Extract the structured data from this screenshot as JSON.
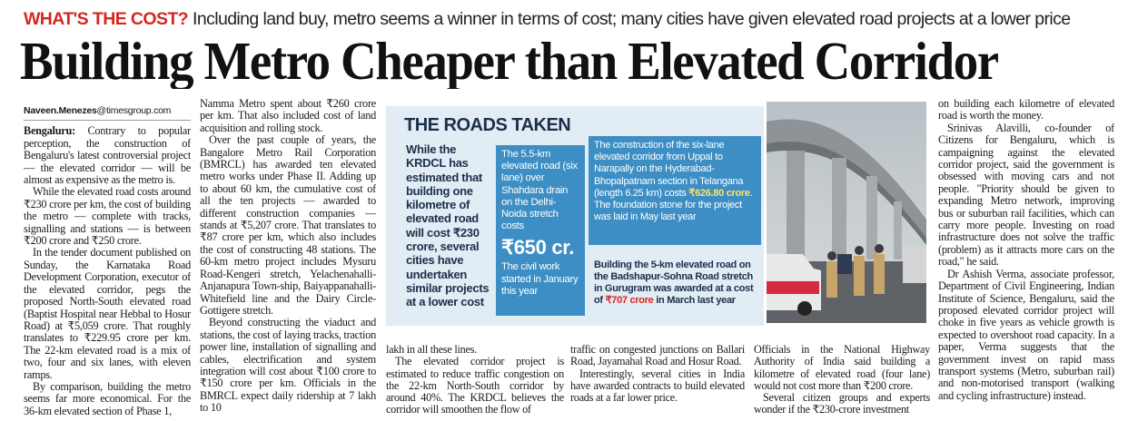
{
  "kicker": {
    "label": "WHAT'S THE COST?",
    "text": "Including land buy, metro seems a winner in terms of cost; many cities have given elevated road projects at a lower price"
  },
  "headline": "Building Metro Cheaper than Elevated Corridor",
  "byline": {
    "name": "Naveen.Menezes",
    "domain": "@timesgroup.com"
  },
  "col1": {
    "dateline": "Bengaluru:",
    "p1": "Contrary to popular perception, the construction of Bengaluru's latest controversial project — the elevated corridor — will be almost as expensive as the metro is.",
    "p2": "While the elevated road costs around ₹230 crore per km, the cost of building the metro — complete with tracks, signalling and stations — is between ₹200 crore and ₹250 crore.",
    "p3": "In the tender document published on Sunday, the Karnataka Road Development Corporation, executor of the elevated corridor, pegs the proposed North-South elevated road (Baptist Hospital near Hebbal to Hosur Road) at ₹5,059 crore. That roughly translates to ₹229.95 crore per km. The 22-km elevated road is a mix of two, four and six lanes, with eleven ramps.",
    "p4": "By comparison, building the metro seems far more economical. For the 36-km elevated section of Phase 1,"
  },
  "col2": {
    "p1": "Namma Metro spent about ₹260 crore per km. That also included cost of land acquisition and rolling stock.",
    "p2": "Over the past couple of years, the Bangalore Metro Rail Corporation (BMRCL) has awarded ten elevated metro works under Phase II. Adding up to about 60 km, the cumulative cost of all the ten projects — awarded to different construction companies — stands at ₹5,207 crore. That translates to ₹87 crore per km, which also includes the cost of constructing 48 stations. The 60-km metro project includes Mysuru Road-Kengeri stretch, Yelachenahalli-Anjanapura Town-ship, Baiyappanahalli-Whitefield line and the Dairy Circle-Gottigere stretch.",
    "p3": "Beyond constructing the viaduct and stations, the cost of laying tracks, traction power line, installation of signalling and cables, electrification and system integration will cost about ₹100 crore to ₹150 crore per km. Officials in the BMRCL expect daily ridership at 7 lakh to 10"
  },
  "col3": {
    "p1": "lakh in all these lines.",
    "p2": "The elevated corridor project is estimated to reduce traffic congestion on the 22-km North-South corridor by around 40%. The KRDCL believes the corridor will smoothen the flow of"
  },
  "col4": {
    "p1": "traffic on congested junctions on Ballari Road, Jayamahal Road and Hosur Road.",
    "p2": "Interestingly, several cities in India have awarded contracts to build elevated roads at a far lower price."
  },
  "col5": {
    "p1": "Officials in the National Highway Authority of India said building a kilometre of elevated road (four lane) would not cost more than ₹200 crore.",
    "p2": "Several citizen groups and experts wonder if the ₹230-crore investment"
  },
  "col6": {
    "p1": "on building each kilometre of elevated road is worth the money.",
    "p2": "Srinivas Alavilli, co-founder of Citizens for Bengaluru, which is campaigning against the elevated corridor project, said the government is obsessed with moving cars and not people. \"Priority should be given to expanding Metro network, improving bus or suburban rail facilities, which can carry more people. Investing on road infrastructure does not solve the traffic (problem) as it attracts more cars on the road,\" he said.",
    "p3": "Dr Ashish Verma, associate professor, Department of Civil Engineering, Indian Institute of Science, Bengaluru, said the proposed elevated corridor project will choke in five years as vehicle growth is expected to overshoot road capacity. In a paper, Verma suggests that the government invest on rapid mass transport systems (Metro, suburban rail) and non-motorised transport (walking and cycling infrastructure) instead."
  },
  "panel": {
    "title": "THE ROADS TAKEN",
    "intro": "While the KRDCL has estimated that building one kilometre of elevated road will cost ₹230 crore, several cities have undertaken similar projects at a lower cost",
    "box_a_text": "The 5.5-km elevated road (six lane) over Shahdara drain on the Delhi-Noida stretch costs",
    "box_a_price": "₹650 cr.",
    "box_a_tail": "The civil work started in January this year",
    "box_b_text": "The construction of the six-lane elevated corridor from Uppal to Narapally on the Hyderabad-Bhopalpatnam section in Telangana (length 6.25 km) costs",
    "box_b_price": "₹626.80 crore",
    "box_b_tail": ". The foundation stone for the project was laid in May last year",
    "box_c_text": "Building the 5-km elevated road on the Badshapur-Sohna Road stretch in Gurugram was awarded at a cost of",
    "box_c_price": "₹707 crore",
    "box_c_tail": " in March last year"
  }
}
